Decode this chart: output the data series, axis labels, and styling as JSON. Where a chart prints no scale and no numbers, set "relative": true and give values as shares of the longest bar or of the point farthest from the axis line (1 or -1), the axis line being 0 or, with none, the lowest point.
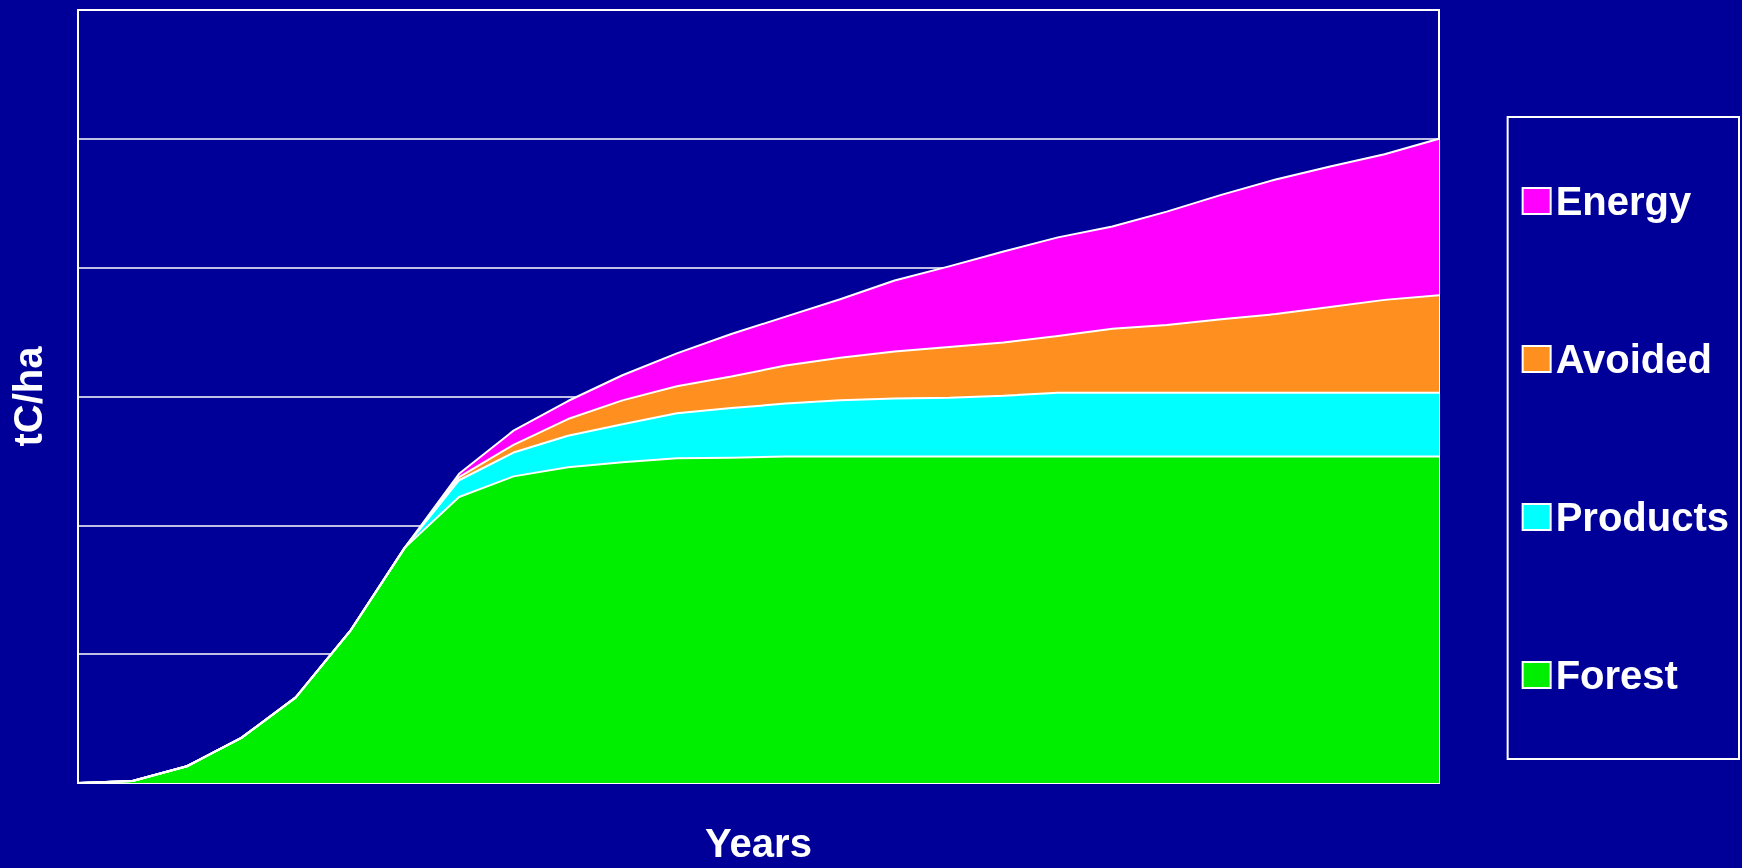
{
  "chart_data": {
    "type": "area",
    "relative": true,
    "stacked": true,
    "xlabel": "Years",
    "ylabel": "tC/ha",
    "grid": "y",
    "legend": "right",
    "marker": "none",
    "categories": [
      null,
      null,
      null,
      null,
      null,
      null,
      null,
      null,
      null,
      null,
      null,
      null,
      null,
      null,
      null,
      null,
      null,
      null,
      null,
      null,
      null,
      null,
      null,
      null,
      null,
      null
    ],
    "series": [
      {
        "name": "Forest",
        "color": "#00ee00",
        "values": [
          0,
          0.003,
          0.026,
          0.07,
          0.133,
          0.236,
          0.365,
          0.444,
          0.476,
          0.49,
          0.498,
          0.504,
          0.505,
          0.507,
          0.507,
          0.507,
          0.507,
          0.507,
          0.507,
          0.507,
          0.507,
          0.507,
          0.507,
          0.507,
          0.507,
          0.507
        ]
      },
      {
        "name": "Products",
        "color": "#00ffff",
        "values": [
          0,
          0,
          0,
          0,
          0,
          0,
          0,
          0.026,
          0.037,
          0.049,
          0.059,
          0.07,
          0.077,
          0.082,
          0.087,
          0.09,
          0.091,
          0.094,
          0.099,
          0.099,
          0.099,
          0.099,
          0.099,
          0.099,
          0.099,
          0.099
        ]
      },
      {
        "name": "Avoided",
        "color": "#ff9020",
        "values": [
          0,
          0,
          0,
          0,
          0,
          0,
          0,
          0.005,
          0.012,
          0.026,
          0.037,
          0.042,
          0.049,
          0.059,
          0.066,
          0.073,
          0.079,
          0.083,
          0.088,
          0.099,
          0.105,
          0.114,
          0.122,
          0.133,
          0.144,
          0.151
        ]
      },
      {
        "name": "Energy",
        "color": "#ff00ff",
        "values": [
          0,
          0,
          0,
          0,
          0,
          0,
          0,
          0.005,
          0.022,
          0.028,
          0.039,
          0.051,
          0.066,
          0.076,
          0.091,
          0.11,
          0.125,
          0.141,
          0.153,
          0.159,
          0.176,
          0.193,
          0.209,
          0.218,
          0.226,
          0.243
        ]
      }
    ]
  }
}
